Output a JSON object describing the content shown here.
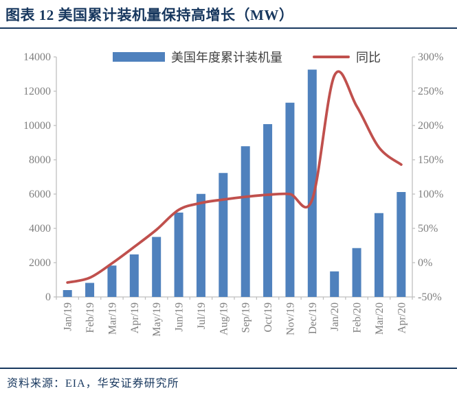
{
  "header": {
    "title": "图表 12 美国累计装机量保持高增长（MW）"
  },
  "footer": {
    "source": "资料来源：EIA，华安证券研究所"
  },
  "legend": {
    "bar_label": "美国年度累计装机量",
    "line_label": "同比"
  },
  "colors": {
    "bar": "#4F81BD",
    "line": "#C0504D",
    "axis_line": "#BFBFBF",
    "tick_label": "#7F7F7F",
    "accent_navy": "#17375E",
    "legend_text": "#404040"
  },
  "chart_data": {
    "type": "bar",
    "title": "图表 12 美国累计装机量保持高增长（MW）",
    "xlabel": "",
    "ylabel_left": "MW",
    "ylabel_right": "%",
    "grid": false,
    "legend_position": "top",
    "categories": [
      "Jan/19",
      "Feb/19",
      "Mar/19",
      "Apr/19",
      "May/19",
      "Jun/19",
      "Jul/19",
      "Aug/19",
      "Sep/19",
      "Oct/19",
      "Nov/19",
      "Dec/19",
      "Jan/20",
      "Feb/20",
      "Mar/20",
      "Apr/20"
    ],
    "series": [
      {
        "name": "美国年度累计装机量",
        "type": "bar",
        "axis": "left",
        "values": [
          400,
          820,
          1830,
          2480,
          3500,
          4920,
          6010,
          7230,
          8790,
          10080,
          11330,
          13260,
          1490,
          2850,
          4890,
          6120
        ]
      },
      {
        "name": "同比",
        "type": "line",
        "axis": "right",
        "unit": "%",
        "values": [
          -29,
          -22,
          -1,
          23,
          48,
          77,
          87,
          92,
          96,
          99,
          100,
          92,
          273,
          228,
          168,
          143
        ]
      }
    ],
    "left_axis": {
      "min": 0,
      "max": 14000,
      "ticks": [
        0,
        2000,
        4000,
        6000,
        8000,
        10000,
        12000,
        14000
      ]
    },
    "right_axis": {
      "min": -50,
      "max": 300,
      "suffix": "%",
      "ticks": [
        -50,
        0,
        50,
        100,
        150,
        200,
        250,
        300
      ]
    }
  }
}
